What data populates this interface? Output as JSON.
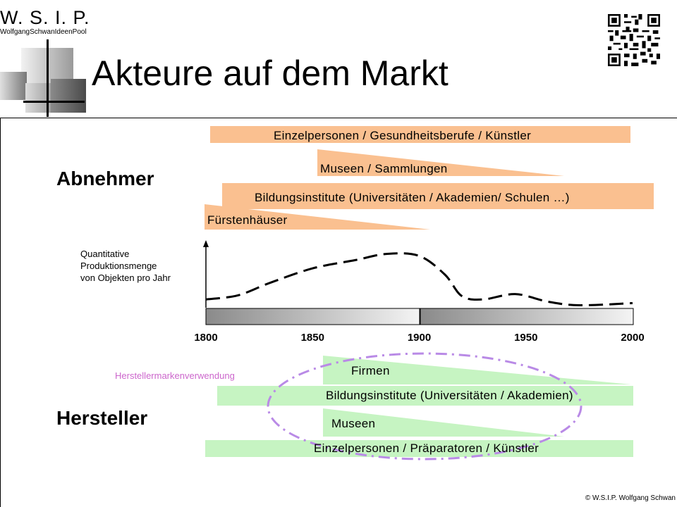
{
  "logo": {
    "title": "W. S. I. P.",
    "subtitle": "WolfgangSchwanIdeenPool"
  },
  "title": "Akteure auf dem Markt",
  "qr_icon": "qr-code-icon",
  "sections": {
    "buyers": "Abnehmer",
    "producers": "Hersteller"
  },
  "buyers": [
    "Einzelpersonen  / Gesundheitsberufe  / Künstler",
    "Museen  / Sammlungen",
    "Bildungsinstitute  (Universitäten / Akademien/  Schulen …)",
    "Fürstenhäuser"
  ],
  "chart": {
    "y_label_lines": [
      "Quantitative",
      "Produktionsmenge",
      "von Objekten pro Jahr"
    ],
    "x_ticks": [
      "1800",
      "1850",
      "1900",
      "1950",
      "2000"
    ]
  },
  "chart_data": {
    "type": "line",
    "x": [
      1800,
      1815,
      1830,
      1850,
      1870,
      1885,
      1900,
      1912,
      1920,
      1930,
      1945,
      1960,
      1975,
      2000
    ],
    "y": [
      2,
      3,
      6,
      9.5,
      11.5,
      13,
      12.5,
      8,
      2.8,
      2,
      3.3,
      1.5,
      0.6,
      1.1
    ],
    "ylim": [
      0,
      17
    ],
    "xlim": [
      1800,
      2000
    ],
    "line_style": "dashed",
    "grid": false
  },
  "brand_label": "Herstellermarkenverwendung",
  "producers": [
    "Firmen",
    "Bildungsinstitute  (Universitäten / Akademien)",
    "Museen",
    "Einzelpersonen  / Präparatoren / Künstler"
  ],
  "colors": {
    "buyer_bar": "#fac090",
    "producer_bar": "#c6f4c2",
    "ellipse": "#b98ae6",
    "brand_label": "#cc66cc"
  },
  "copyright": "© W.S.I.P.  Wolfgang Schwan"
}
